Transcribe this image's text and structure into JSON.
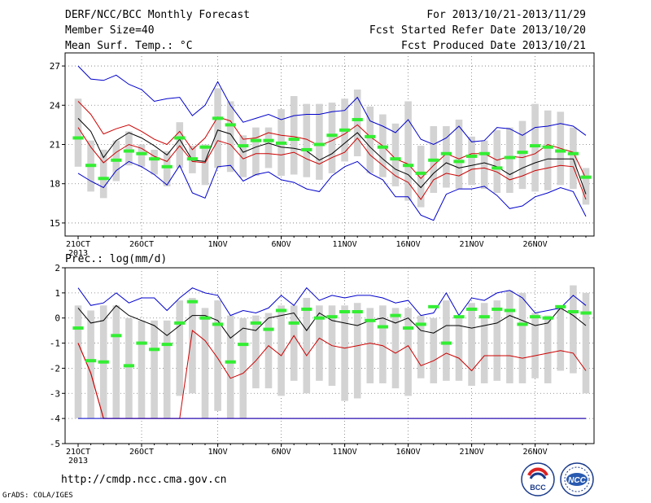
{
  "header": {
    "title": "DERF/NCC/BCC Monthly Forecast",
    "member_size": "Member Size=40",
    "variable": "Mean Surf. Temp.: °C",
    "period": "For 2013/10/21-2013/11/29",
    "started": "Fcst Started Refer Date 2013/10/20",
    "produced": "Fcst Produced Date 2013/10/21"
  },
  "footer": {
    "url": "http://cmdp.ncc.cma.gov.cn",
    "grads": "GrADS: COLA/IGES",
    "logo_left_text": "BCC",
    "logo_right_text": "NCC"
  },
  "colors": {
    "blue": "#0000cc",
    "red": "#cc0000",
    "black": "#000000",
    "green": "#33ee33",
    "grey": "#d3d3d3"
  },
  "chart_data": [
    {
      "type": "line",
      "title": "Mean Surf. Temp.: °C",
      "x_ticks": [
        "21OCT",
        "26OCT",
        "1NOV",
        "6NOV",
        "11NOV",
        "16NOV",
        "21NOV",
        "26NOV"
      ],
      "x_tick_index": [
        0,
        5,
        11,
        16,
        21,
        26,
        31,
        36
      ],
      "x_sub_label": "2013",
      "ylim": [
        14,
        28
      ],
      "yticks": [
        15,
        18,
        21,
        24,
        27
      ],
      "grid": true,
      "series": [
        {
          "color": "blue",
          "values": [
            27,
            26,
            25.9,
            26.3,
            25.6,
            25.2,
            24.3,
            24.5,
            24.6,
            23.2,
            24,
            25.8,
            24,
            22.7,
            23,
            23.3,
            22.9,
            23.2,
            23.3,
            23.3,
            23.5,
            23.6,
            24.6,
            22.8,
            22.4,
            21.9,
            22.9,
            21.4,
            21,
            21.5,
            22.4,
            21.2,
            21.3,
            22.3,
            22.2,
            21.7,
            22.3,
            22.4,
            22.6,
            22.4,
            21.7
          ]
        },
        {
          "color": "red",
          "values": [
            24.3,
            23.3,
            21.8,
            22.2,
            22.5,
            22,
            21.4,
            21,
            22,
            20.6,
            21.5,
            23.1,
            22.8,
            21.4,
            21.5,
            21.9,
            21.7,
            21.6,
            21.4,
            20.9,
            21.3,
            21.8,
            22.5,
            21.6,
            20.9,
            19.9,
            19.5,
            18.4,
            19.4,
            20.3,
            19.9,
            20.3,
            20.3,
            19.8,
            20.1,
            20,
            20.3,
            21,
            20.7,
            20.4,
            18.4
          ]
        },
        {
          "color": "black",
          "values": [
            23,
            22,
            20,
            21.3,
            21.9,
            21.5,
            20.9,
            20.2,
            21.4,
            19.8,
            19.7,
            22.1,
            21.8,
            20.4,
            20.8,
            21.1,
            20.8,
            20.7,
            20.5,
            19.8,
            20.3,
            21.1,
            21.9,
            20.8,
            19.9,
            19.1,
            18.7,
            17.7,
            18.8,
            19.6,
            19.2,
            19.4,
            19.6,
            19.3,
            18.7,
            19.2,
            19.6,
            19.9,
            19.9,
            19.9,
            17.2
          ]
        },
        {
          "color": "red",
          "values": [
            22.3,
            20.8,
            19.6,
            20.4,
            21,
            20.7,
            20.1,
            19.7,
            20.9,
            19.7,
            19.6,
            21.3,
            21,
            19.9,
            20.3,
            20.3,
            20.2,
            20.4,
            19.9,
            19.5,
            20,
            20.4,
            21.5,
            20.2,
            19.4,
            18.6,
            18.1,
            16.8,
            18.3,
            18.8,
            18.6,
            19.1,
            19.2,
            18.9,
            18.3,
            18.6,
            19,
            19.2,
            19.4,
            19.3,
            16.8
          ]
        },
        {
          "color": "blue",
          "values": [
            18.8,
            18.2,
            17.7,
            19,
            19.7,
            19.3,
            18.7,
            17.9,
            19.4,
            17.3,
            16.9,
            19.3,
            19.4,
            18.2,
            18.7,
            18.9,
            18.3,
            18.1,
            17.6,
            17.4,
            18.6,
            19.3,
            19.7,
            18.8,
            18.3,
            17,
            17,
            15.6,
            15.2,
            17.2,
            17.6,
            17.6,
            17.8,
            17.1,
            16.1,
            16.3,
            17,
            17.3,
            17.7,
            17.4,
            15.5
          ]
        }
      ],
      "bar_low": [
        19.3,
        17.4,
        16.9,
        18.2,
        19.4,
        19.3,
        18.7,
        17.8,
        19.2,
        18.8,
        17.9,
        19.2,
        18.9,
        18.5,
        18.6,
        19.2,
        18.6,
        18.7,
        18.5,
        18.3,
        18.8,
        19.7,
        20.1,
        18.8,
        18.5,
        17.8,
        16.7,
        16.2,
        17.3,
        17.7,
        17.6,
        17.9,
        17.6,
        17.3,
        17.3,
        17.6,
        17.4,
        17.5,
        17.9,
        17.6,
        16.4
      ],
      "bar_high": [
        24.5,
        21.3,
        20.6,
        21.3,
        22,
        21,
        20.6,
        20.5,
        22.7,
        20.9,
        21,
        25.3,
        24.3,
        21.7,
        22.3,
        22.3,
        23.7,
        24.7,
        24.1,
        24.1,
        24.2,
        24.5,
        25.2,
        23.9,
        23.3,
        22.6,
        24.3,
        20.9,
        22.4,
        22.4,
        22.9,
        21.6,
        21.3,
        22.1,
        22.3,
        22.8,
        24.1,
        23.6,
        23.5,
        22.3,
        19.2
      ],
      "green_marks": [
        21.5,
        19.4,
        18.4,
        19.8,
        20.5,
        20.3,
        19.9,
        19.3,
        21.5,
        19.9,
        20.8,
        23,
        22.5,
        20.9,
        21.3,
        21.3,
        21.1,
        21.4,
        20.6,
        21,
        21.7,
        22.1,
        22.9,
        21.6,
        20.8,
        19.9,
        19.4,
        18.8,
        19.8,
        20.3,
        19.7,
        20.1,
        20.3,
        19.2,
        20,
        20.4,
        20.9,
        20.8,
        20.5,
        20.3,
        18.5
      ]
    },
    {
      "type": "line",
      "title": "Prec.: log(mm/d)",
      "x_ticks": [
        "21OCT",
        "26OCT",
        "1NOV",
        "6NOV",
        "11NOV",
        "16NOV",
        "21NOV",
        "26NOV"
      ],
      "x_tick_index": [
        0,
        5,
        11,
        16,
        21,
        26,
        31,
        36
      ],
      "x_sub_label": "2013",
      "ylim": [
        -5,
        2
      ],
      "yticks": [
        -5,
        -4,
        -3,
        -2,
        -1,
        0,
        1,
        2
      ],
      "grid": true,
      "series": [
        {
          "color": "blue",
          "values": [
            1.2,
            0.5,
            0.6,
            1,
            0.6,
            0.8,
            0.8,
            0.3,
            0.8,
            1.2,
            1,
            0.9,
            0.1,
            0.3,
            0.2,
            0.4,
            0.9,
            0.5,
            1.2,
            0.7,
            0.9,
            0.8,
            0.9,
            0.9,
            0.8,
            0.6,
            0.7,
            0.1,
            0.2,
            1,
            0.1,
            0.8,
            0.7,
            1,
            1.1,
            0.8,
            0.2,
            0.3,
            0.4,
            0.9,
            0.5
          ]
        },
        {
          "color": "black",
          "values": [
            0.4,
            -0.2,
            -0.1,
            0.5,
            0.1,
            -0.1,
            -0.3,
            -0.7,
            -0.3,
            0.1,
            0.1,
            -0.1,
            -0.8,
            -0.4,
            -0.5,
            0,
            0.1,
            0.2,
            -0.5,
            0.2,
            -0.1,
            -0.2,
            -0.3,
            -0.1,
            0,
            -0.2,
            0,
            -0.5,
            -0.6,
            -0.3,
            -0.3,
            -0.4,
            -0.3,
            -0.2,
            0.1,
            -0.1,
            -0.3,
            -0.2,
            0.4,
            0.1,
            -0.3
          ]
        },
        {
          "color": "red",
          "values": [
            -1,
            -2.2,
            -4,
            -4,
            -4,
            -4,
            -4,
            -4,
            -4,
            -4,
            -4,
            -4,
            -4,
            -4,
            -4,
            -4,
            -4,
            -4,
            -4,
            -4,
            -4,
            -4,
            -4,
            -4,
            -4,
            -4,
            -4,
            -4,
            -4,
            -4,
            -4,
            -4,
            -4,
            -4,
            -4,
            -4,
            -4,
            -4,
            -4,
            -4,
            -4
          ]
        },
        {
          "color": "red",
          "values": [
            -1,
            -2.2,
            -4,
            -4,
            -4,
            -4,
            -4,
            -4,
            -4,
            -0.5,
            -0.9,
            -1.6,
            -2.4,
            -2.2,
            -1.7,
            -1.1,
            -1.5,
            -0.7,
            -1.5,
            -0.8,
            -1.1,
            -1.2,
            -1.1,
            -1,
            -1.1,
            -1.4,
            -1.1,
            -1.9,
            -1.7,
            -1.4,
            -1.6,
            -2.1,
            -1.5,
            -1.5,
            -1.5,
            -1.6,
            -1.5,
            -1.4,
            -1.3,
            -1.4,
            -2.1
          ]
        },
        {
          "color": "blue",
          "values": [
            -4,
            -4,
            -4,
            -4,
            -4,
            -4,
            -4,
            -4,
            -4,
            -4,
            -4,
            -4,
            -4,
            -4,
            -4,
            -4,
            -4,
            -4,
            -4,
            -4,
            -4,
            -4,
            -4,
            -4,
            -4,
            -4,
            -4,
            -4,
            -4,
            -4,
            -4,
            -4,
            -4,
            -4,
            -4,
            -4,
            -4,
            -4,
            -4,
            -4,
            -4
          ]
        }
      ],
      "bar_low": [
        -4,
        -4,
        -4,
        -4,
        -4,
        -4,
        -4,
        -4,
        -3.1,
        -3,
        -4,
        -3.7,
        -4,
        -4,
        -2.8,
        -2.8,
        -3.1,
        -2.5,
        -3,
        -2.5,
        -2.7,
        -3.3,
        -3.2,
        -2.6,
        -2.6,
        -2.8,
        -3.1,
        -2.4,
        -2.6,
        -2.5,
        -2.5,
        -2.7,
        -2.6,
        -2.5,
        -2.6,
        -2.6,
        -2.4,
        -2.6,
        -2.1,
        -2.2,
        -3
      ],
      "bar_high": [
        0.5,
        0.3,
        0.5,
        0.5,
        0,
        -0.1,
        -0.1,
        -0.1,
        0.7,
        0.8,
        0.4,
        0.7,
        0.1,
        0,
        0.1,
        0.2,
        0.5,
        0.5,
        0.8,
        0.5,
        0.5,
        0.5,
        0.6,
        0.4,
        0.5,
        0.4,
        0.4,
        0.1,
        0,
        0.7,
        0,
        0.6,
        0.6,
        0.7,
        1.1,
        1,
        0.2,
        0.1,
        0.4,
        1.3,
        1
      ],
      "green_marks": [
        -0.4,
        -1.7,
        -1.75,
        -0.7,
        -1.9,
        -1,
        -1.25,
        -1.05,
        -0.2,
        0.65,
        0,
        -0.25,
        -1.75,
        -1.05,
        -0.2,
        -0.45,
        0.3,
        -0.2,
        0.35,
        0,
        0.05,
        0.25,
        0.25,
        -0.1,
        -0.35,
        0.1,
        -0.4,
        -0.25,
        0.45,
        -1,
        0.05,
        0.35,
        0.05,
        0.35,
        0.3,
        -0.25,
        0.05,
        0,
        0.45,
        0.25,
        0.2
      ]
    }
  ]
}
